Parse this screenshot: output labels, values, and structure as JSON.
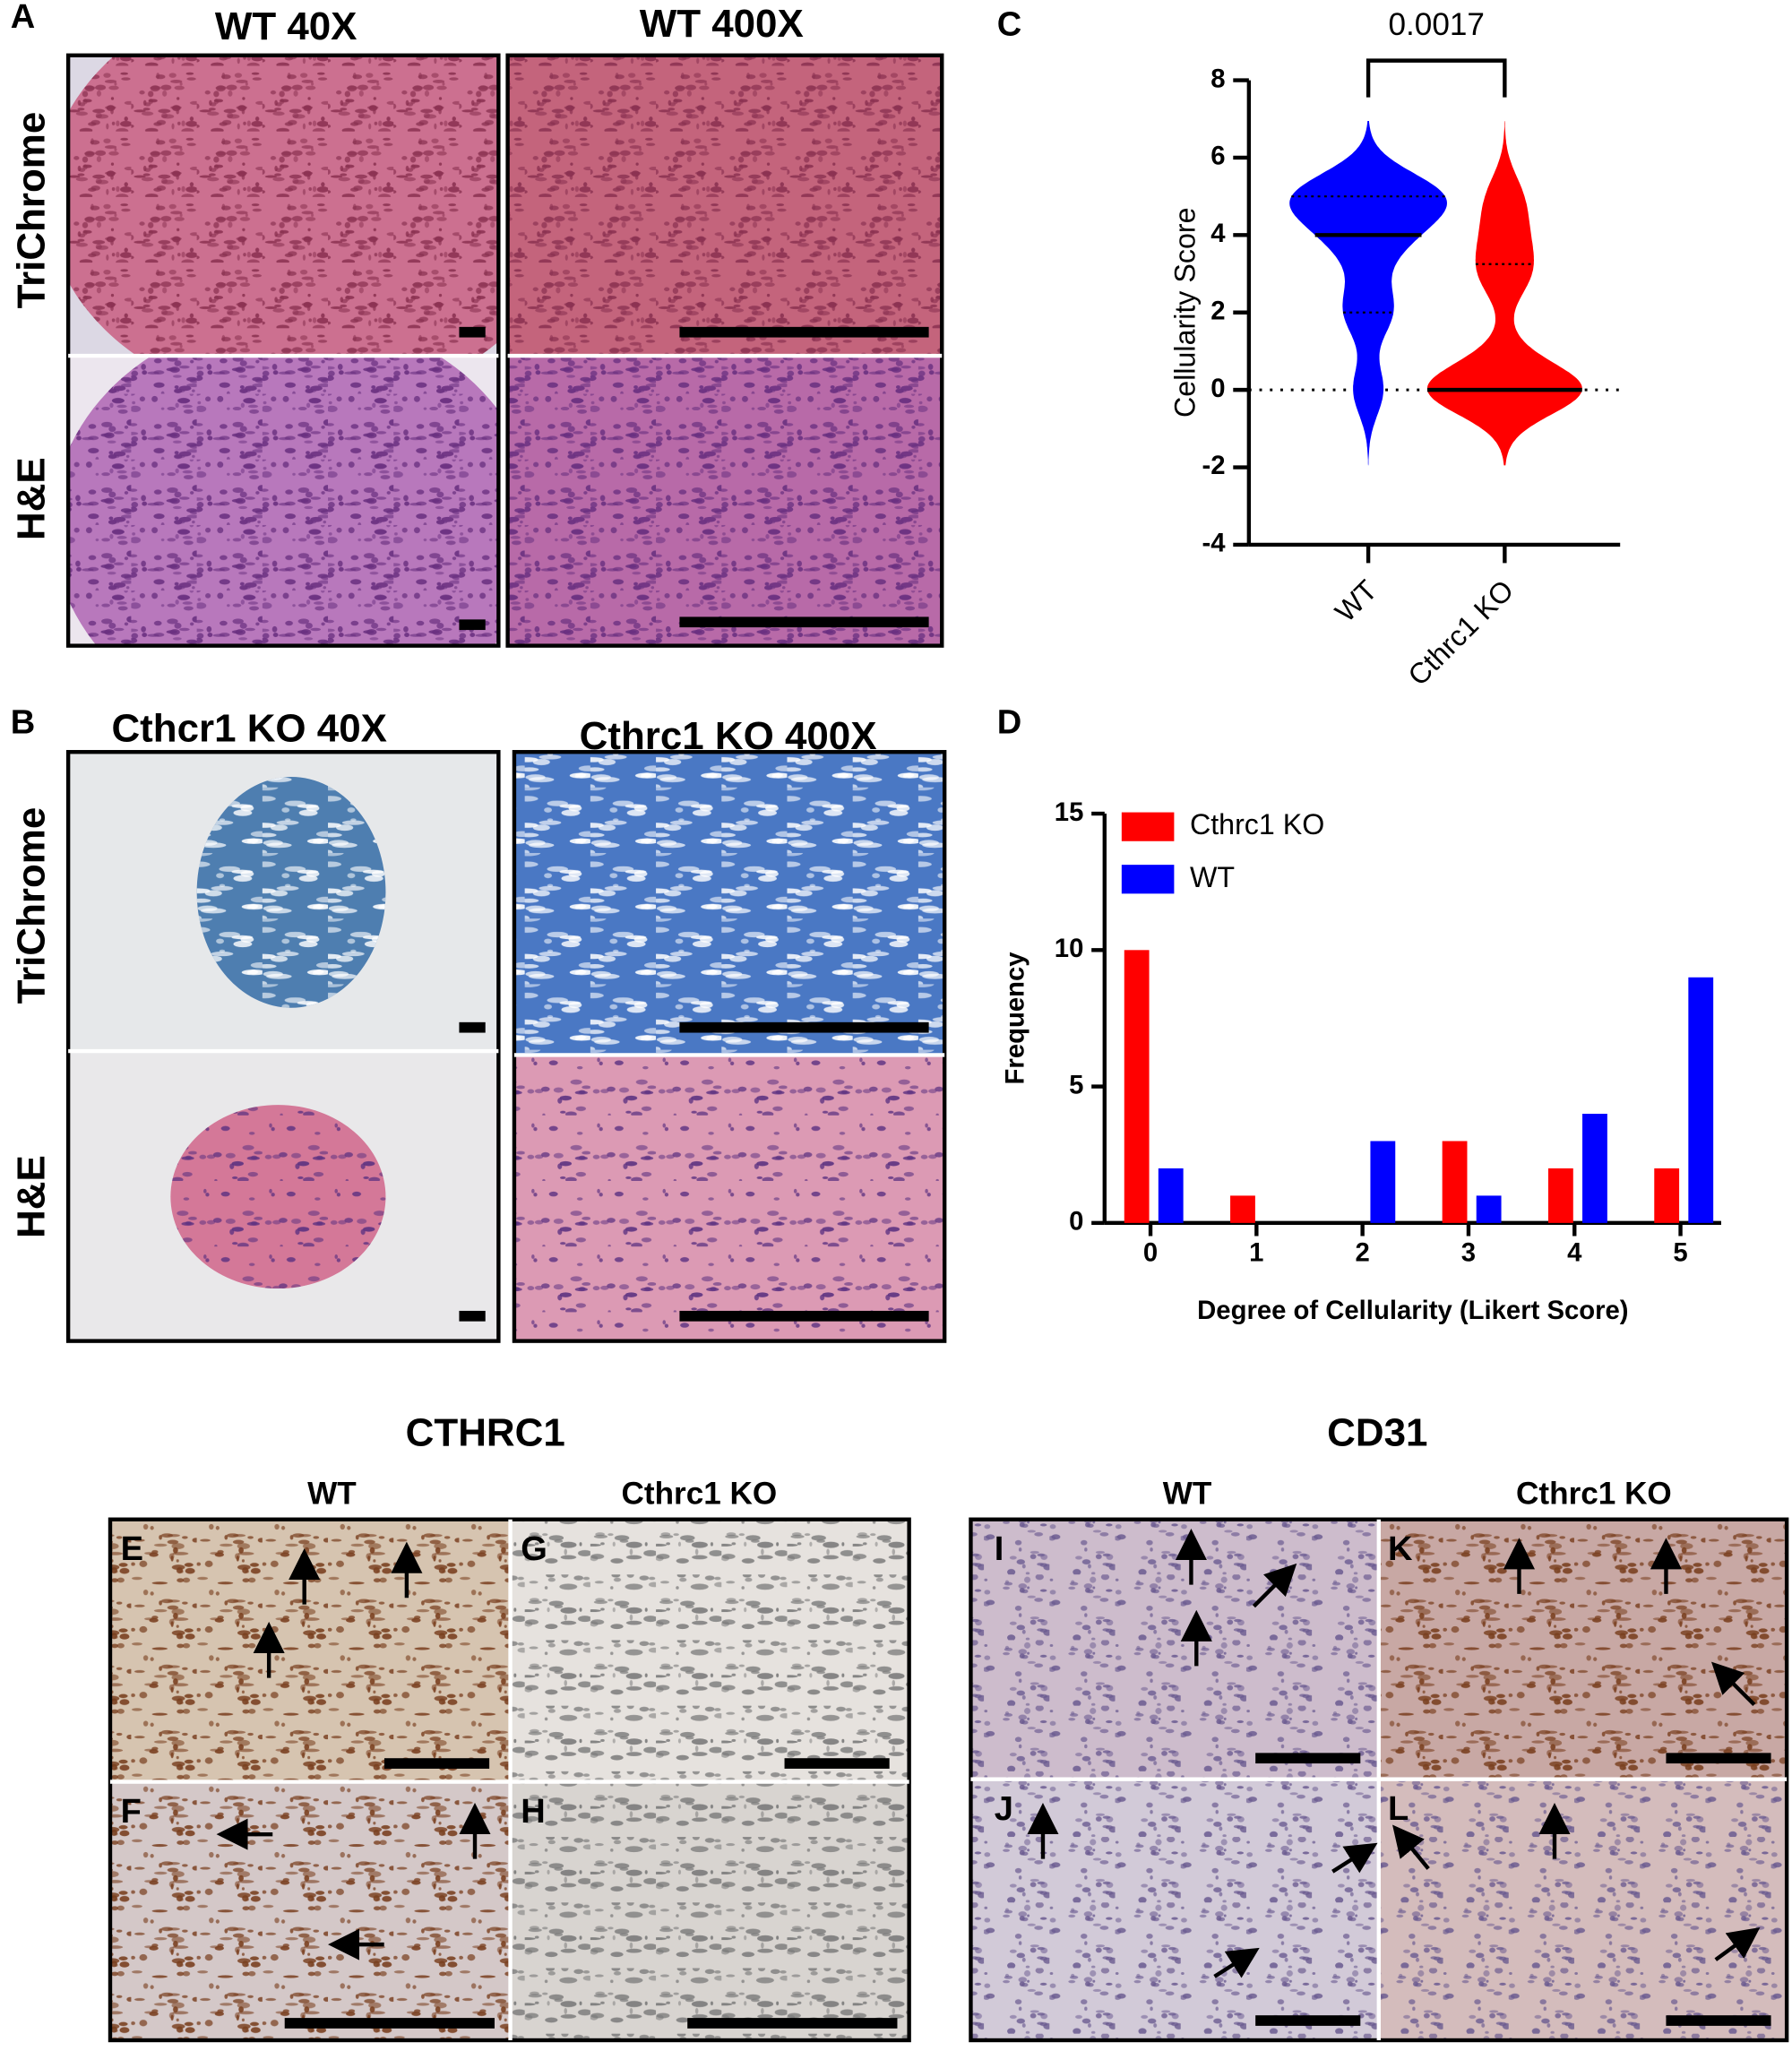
{
  "panels": {
    "A": "A",
    "B": "B",
    "C": "C",
    "D": "D",
    "E": "E",
    "F": "F",
    "G": "G",
    "H": "H",
    "I": "I",
    "J": "J",
    "K": "K",
    "L": "L"
  },
  "headers": {
    "wt40": "WT 40X",
    "wt400": "WT 400X",
    "ko40": "Cthcr1 KO 40X",
    "ko400": "Cthrc1 KO 400X",
    "trichrome_a": "TriChrome",
    "he_a": "H&E",
    "trichrome_b": "TriChrome",
    "he_b": "H&E",
    "cthrc1": "CTHRC1",
    "cd31": "CD31",
    "wt_e": "WT",
    "ko_g": "Cthrc1 KO",
    "wt_i": "WT",
    "ko_k": "Cthrc1 KO"
  },
  "chart_data": [
    {
      "type": "violin",
      "ylabel": "Cellularity Score",
      "annotation": "0.0017",
      "categories": [
        "WT",
        "Cthrc1 KO"
      ],
      "series": [
        {
          "name": "WT",
          "color": "#0000ff",
          "values": [
            0,
            0,
            2,
            2,
            2,
            3,
            4,
            4,
            4,
            4,
            5,
            5,
            5,
            5,
            5,
            5,
            5,
            5,
            5
          ],
          "median": 4,
          "quartiles": [
            2,
            5
          ]
        },
        {
          "name": "Cthrc1 KO",
          "color": "#ff0000",
          "values": [
            0,
            0,
            0,
            0,
            0,
            0,
            0,
            0,
            0,
            0,
            1,
            3,
            3,
            3,
            4,
            4,
            5,
            5
          ],
          "median": 0,
          "quartiles": [
            0,
            3.25
          ]
        }
      ],
      "ylim": [
        -4,
        8
      ],
      "yticks": [
        -4,
        -2,
        0,
        2,
        4,
        6,
        8
      ]
    },
    {
      "type": "bar",
      "xlabel": "Degree of Cellularity (Likert Score)",
      "ylabel": "Frequency",
      "categories": [
        "0",
        "1",
        "2",
        "3",
        "4",
        "5"
      ],
      "series": [
        {
          "name": "Cthrc1 KO",
          "color": "#ff0000",
          "values": [
            10,
            1,
            0,
            3,
            2,
            2
          ]
        },
        {
          "name": "WT",
          "color": "#0000ff",
          "values": [
            2,
            0,
            3,
            1,
            4,
            9
          ]
        }
      ],
      "ylim": [
        0,
        15
      ],
      "yticks": [
        0,
        5,
        10,
        15
      ],
      "legend": "upper-left"
    }
  ]
}
